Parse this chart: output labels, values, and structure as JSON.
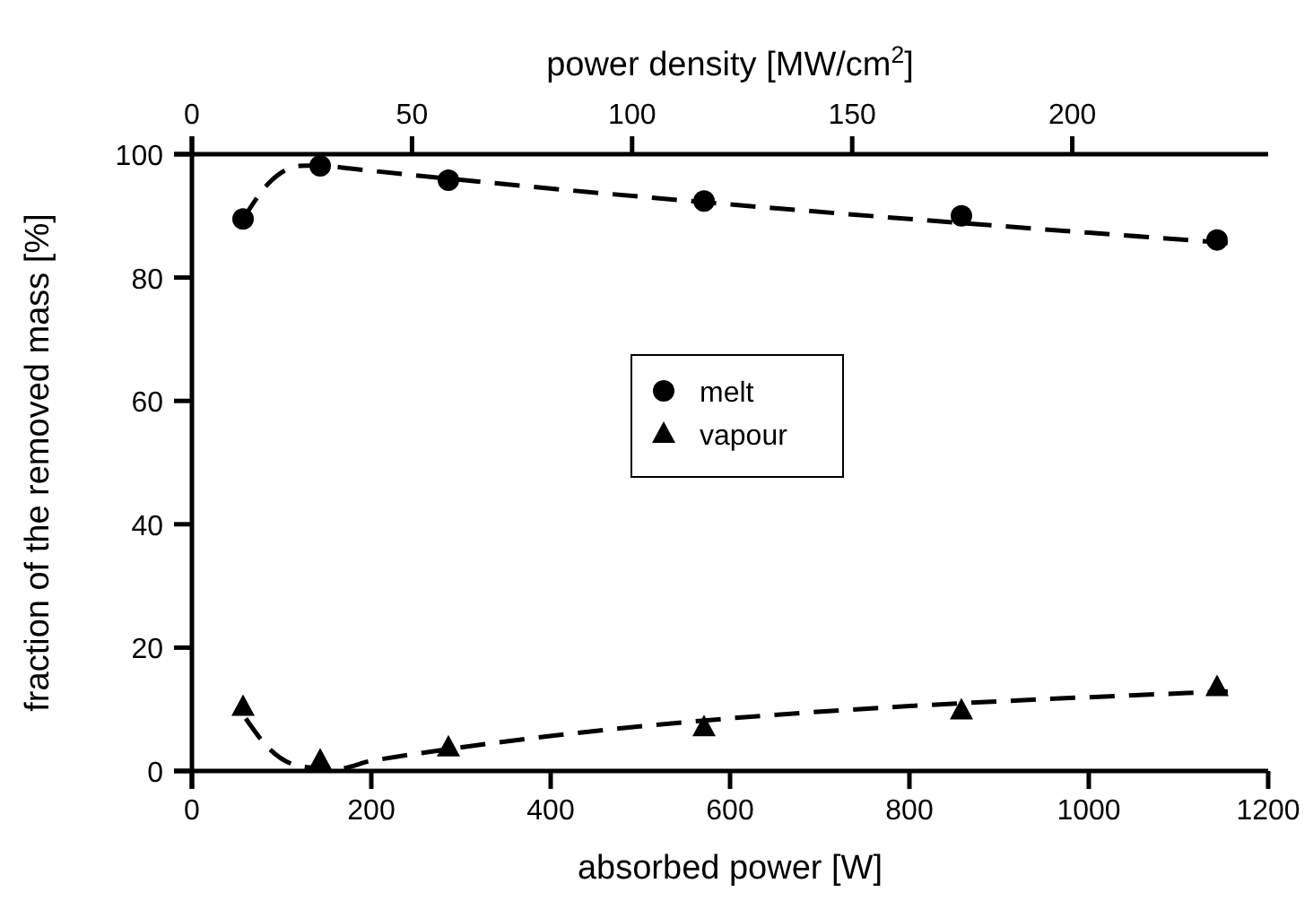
{
  "chart_data": {
    "type": "scatter",
    "xlabel": "absorbed power [W]",
    "ylabel": "fraction of the removed mass [%]",
    "x2label": "power density [MW/cm$^{2}$]",
    "xlim": [
      0,
      1200
    ],
    "xticks": [
      0,
      200,
      400,
      600,
      800,
      1000,
      1200
    ],
    "ylim": [
      0,
      100
    ],
    "yticks": [
      0,
      20,
      40,
      60,
      80,
      100
    ],
    "x2lim": [
      0,
      244.5
    ],
    "x2ticks": [
      0,
      50,
      100,
      150,
      200
    ],
    "series": [
      {
        "name": "melt",
        "color": "#000000",
        "marker": "circle",
        "x": [
          57,
          143,
          286,
          571,
          858,
          1143
        ],
        "values": [
          89.5,
          98.1,
          95.8,
          92.4,
          90,
          86.1
        ]
      },
      {
        "name": "vapour",
        "color": "#000000",
        "marker": "triangle",
        "x": [
          57,
          143,
          286,
          571,
          858,
          1143
        ],
        "values": [
          10.4,
          1.7,
          3.8,
          7.1,
          9.8,
          13.6
        ]
      },
      {
        "type": "line",
        "color": "#000000",
        "line_style": "dashed",
        "marker": "none",
        "x": [
          57,
          87,
          120,
          143,
          175,
          1155
        ],
        "values": [
          89.5,
          95.5,
          98.1,
          98.2,
          97.7,
          85.6
        ]
      },
      {
        "type": "line",
        "color": "#000000",
        "line_style": "dashed",
        "marker": "none",
        "x": [
          60,
          87,
          120,
          160,
          202,
          1155
        ],
        "values": [
          8.5,
          3.5,
          0.8,
          0.3,
          1.7,
          12.9
        ]
      }
    ],
    "legend": "center",
    "grid": false
  }
}
